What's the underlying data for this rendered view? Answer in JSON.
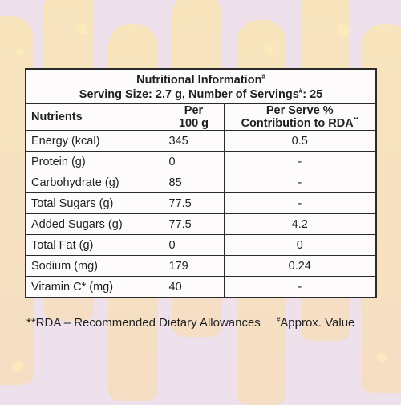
{
  "table": {
    "title": "Nutritional Information",
    "title_mark": "#",
    "serving_prefix": "Serving Size: 2.7 g, Number of Servings",
    "serving_mark": "#",
    "serving_suffix": ": 25",
    "headers": {
      "nutrients": "Nutrients",
      "per100_line1": "Per",
      "per100_line2": "100 g",
      "rda_line1": "Per Serve %",
      "rda_line2": "Contribution to RDA",
      "rda_mark": "**"
    },
    "rows": [
      {
        "nutrient": "Energy (kcal)",
        "per100": "345",
        "rda": "0.5"
      },
      {
        "nutrient": "Protein (g)",
        "per100": "0",
        "rda": "-"
      },
      {
        "nutrient": "Carbohydrate (g)",
        "per100": "85",
        "rda": "-"
      },
      {
        "nutrient": "Total Sugars (g)",
        "per100": "77.5",
        "rda": "-"
      },
      {
        "nutrient": "Added Sugars (g)",
        "per100": "77.5",
        "rda": "4.2"
      },
      {
        "nutrient": "Total Fat (g)",
        "per100": "0",
        "rda": "0"
      },
      {
        "nutrient": "Sodium (mg)",
        "per100": "179",
        "rda": "0.24"
      },
      {
        "nutrient": "Vitamin C* (mg)",
        "per100": "40",
        "rda": "-"
      }
    ]
  },
  "footnote": {
    "rda_note": "**RDA – Recommended Dietary Allowances",
    "approx_mark": "#",
    "approx_note": "Approx. Value"
  },
  "colors": {
    "background": "#efe1ec",
    "table_bg": "#fdfbfc",
    "border": "#2b2b2b"
  }
}
